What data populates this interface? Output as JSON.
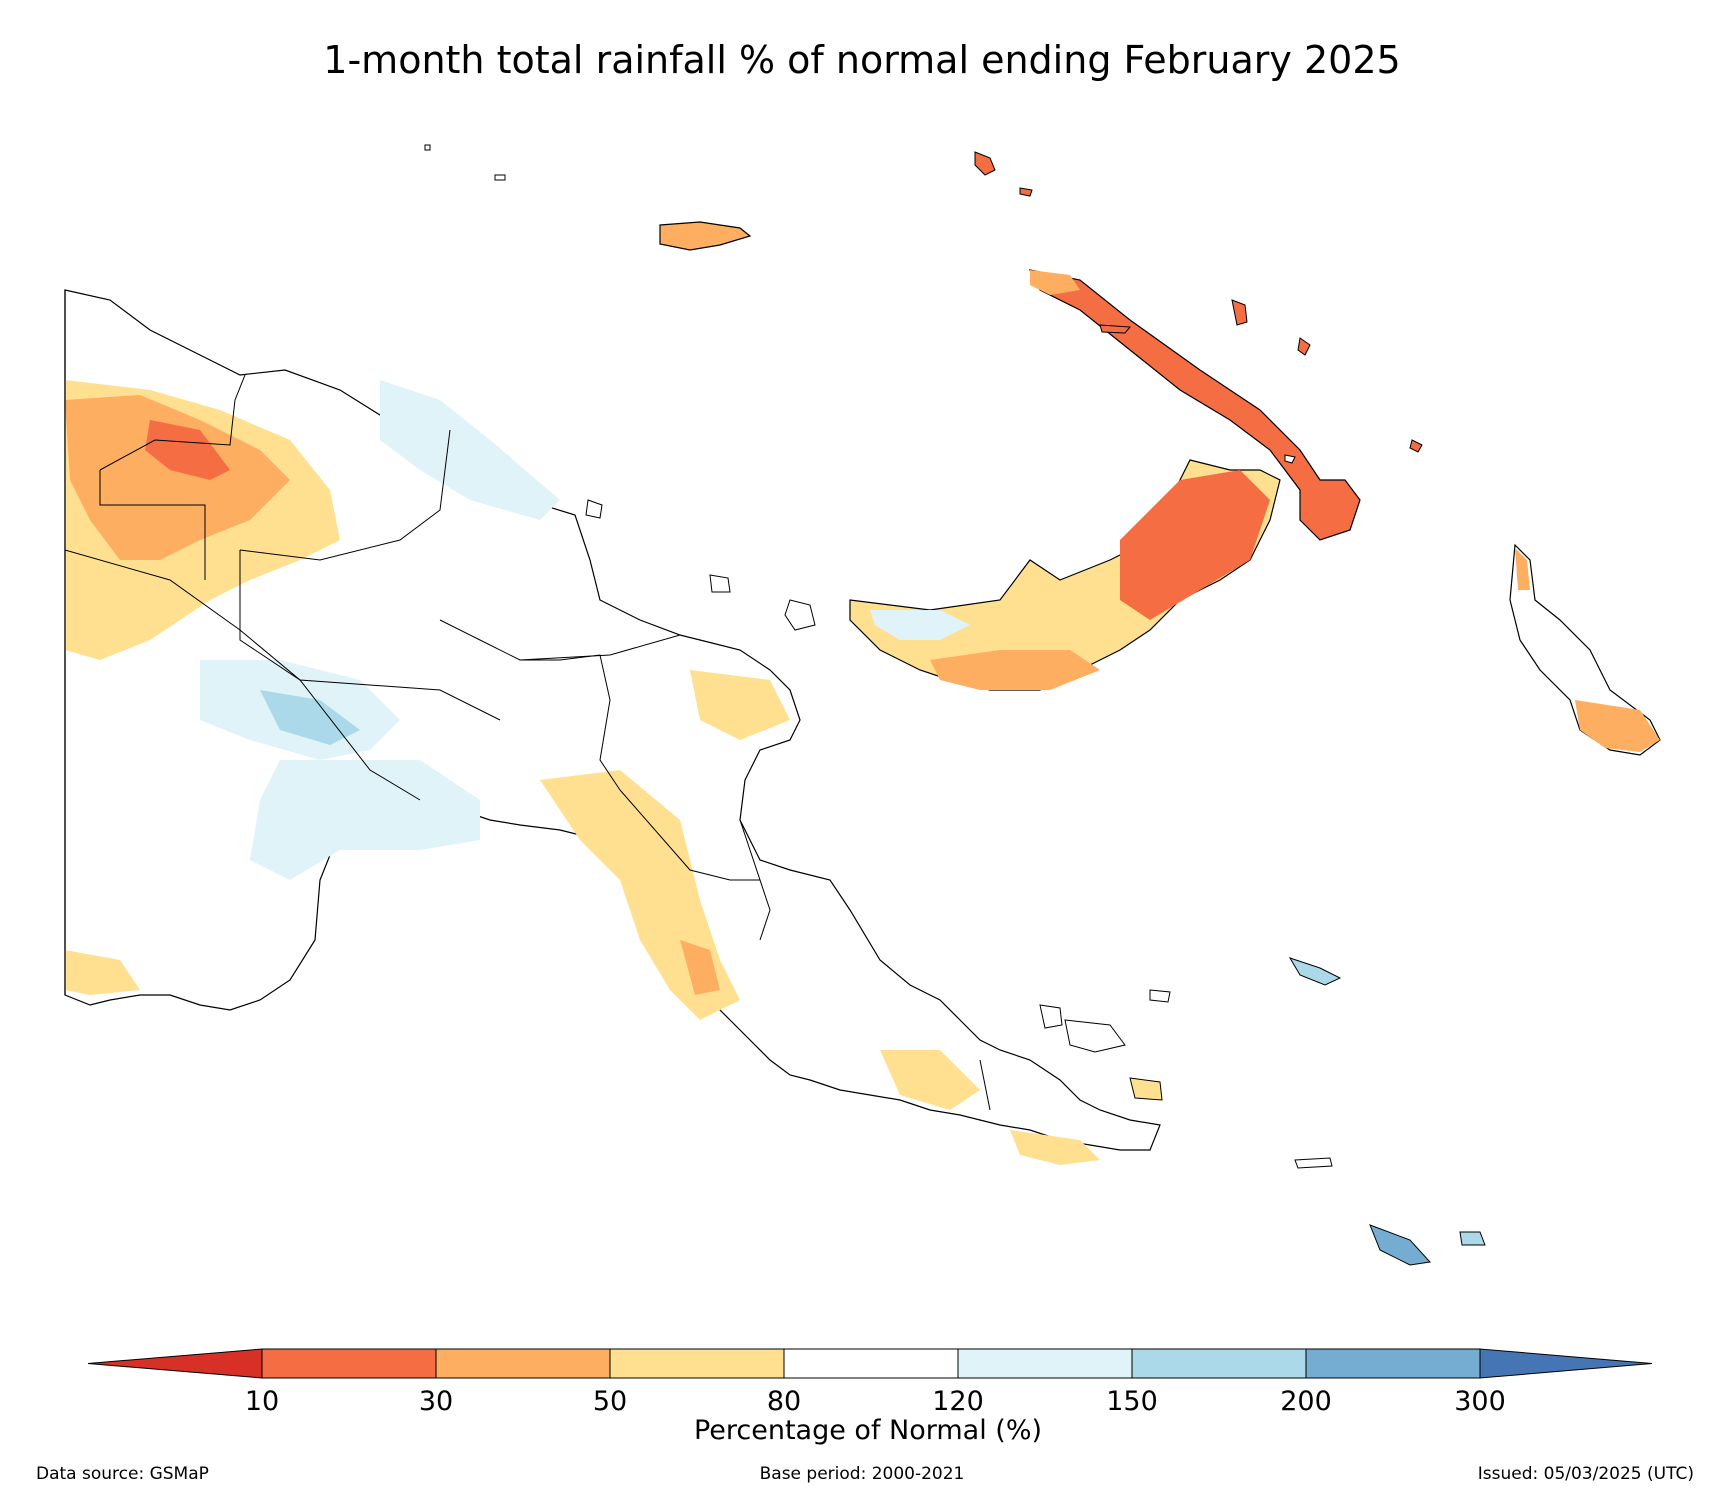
{
  "title": "1-month total rainfall % of normal ending February 2025",
  "colorbar": {
    "label": "Percentage of Normal (%)",
    "ticks": [
      "10",
      "30",
      "50",
      "80",
      "120",
      "150",
      "200",
      "300"
    ],
    "bins": [
      {
        "range": "<10",
        "color": "#d73027"
      },
      {
        "range": "10-30",
        "color": "#f46d43"
      },
      {
        "range": "30-50",
        "color": "#fdae61"
      },
      {
        "range": "50-80",
        "color": "#fee090"
      },
      {
        "range": "80-120",
        "color": "#ffffff"
      },
      {
        "range": "120-150",
        "color": "#e0f3f8"
      },
      {
        "range": "150-200",
        "color": "#abd9e9"
      },
      {
        "range": "200-300",
        "color": "#74add1"
      },
      {
        "range": ">300",
        "color": "#4575b4"
      }
    ]
  },
  "footer": {
    "source": "Data source: GSMaP",
    "base_period": "Base period: 2000-2021",
    "issued": "Issued: 05/03/2025 (UTC)"
  }
}
